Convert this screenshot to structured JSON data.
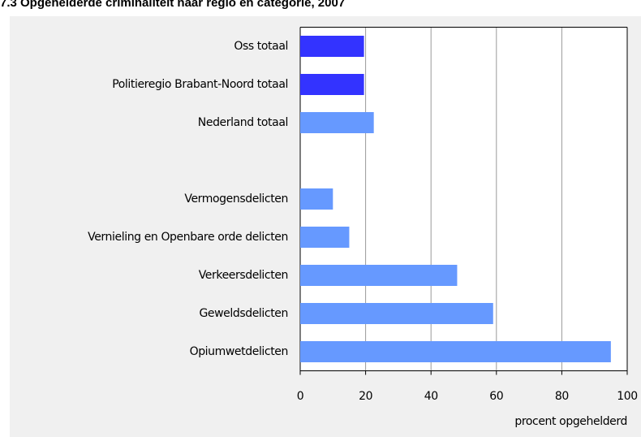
{
  "chart_data": {
    "type": "bar",
    "orientation": "horizontal",
    "title": "7.3 Opgehelderde criminaliteit naar regio en categorie, 2007",
    "categories": [
      "Oss totaal",
      "Politieregio Brabant-Noord totaal",
      "Nederland totaal",
      null,
      "Vermogensdelicten",
      "Vernieling en Openbare orde delicten",
      "Verkeersdelicten",
      "Geweldsdelicten",
      "Opiumwetdelicten"
    ],
    "values": [
      19.5,
      19.5,
      22.5,
      null,
      10,
      15,
      48,
      59,
      95
    ],
    "colors": [
      "#3333ff",
      "#3333ff",
      "#6699ff",
      null,
      "#6699ff",
      "#6699ff",
      "#6699ff",
      "#6699ff",
      "#6699ff"
    ],
    "xlabel": "procent opgehelderd",
    "xlim": [
      0,
      100
    ],
    "xticks": [
      0,
      20,
      40,
      60,
      80,
      100
    ],
    "grid": true
  }
}
